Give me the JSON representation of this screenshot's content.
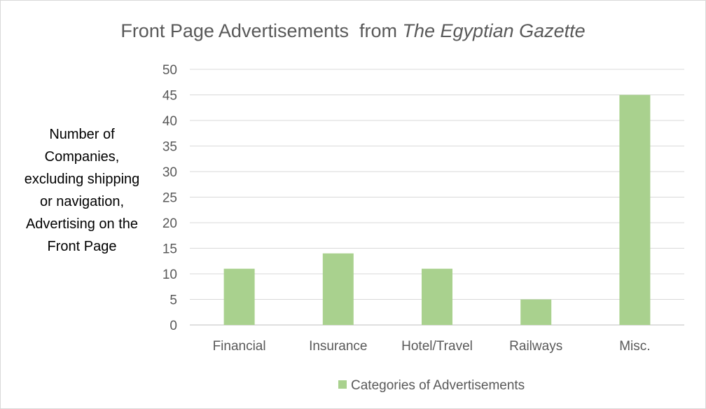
{
  "chart_data": {
    "type": "bar",
    "title": "Front Page Advertisements  from ",
    "title_italic": "The Egyptian Gazette",
    "ylabel_lines": [
      "Number of",
      "Companies,",
      "excluding shipping",
      "or navigation,",
      "Advertising on the",
      "Front Page"
    ],
    "xlabel": "",
    "categories": [
      "Financial",
      "Insurance",
      "Hotel/Travel",
      "Railways",
      "Misc."
    ],
    "series": [
      {
        "name": "Categories of Advertisements",
        "values": [
          11,
          14,
          11,
          5,
          45
        ],
        "color": "#a9d18e"
      }
    ],
    "ylim": [
      0,
      50
    ],
    "yticks": [
      0,
      5,
      10,
      15,
      20,
      25,
      30,
      35,
      40,
      45,
      50
    ],
    "grid": true,
    "legend_position": "bottom"
  }
}
